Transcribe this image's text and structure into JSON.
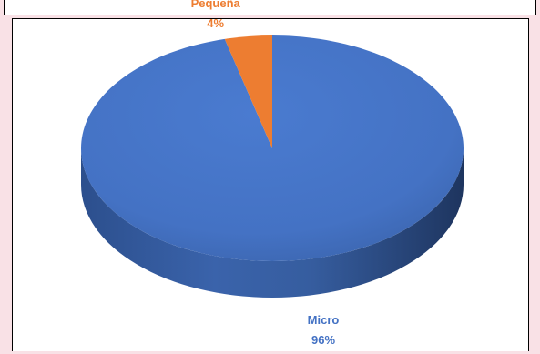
{
  "chart_data": {
    "type": "pie",
    "title": "",
    "categories": [
      "Micro",
      "Pequeña"
    ],
    "values": [
      96,
      4
    ],
    "labels": [
      {
        "name": "Micro",
        "percent": "96%"
      },
      {
        "name": "Pequeña",
        "percent": "4%"
      }
    ],
    "colors": [
      "#4472c4",
      "#ed7d31"
    ],
    "style": "3d",
    "legend": "none"
  }
}
